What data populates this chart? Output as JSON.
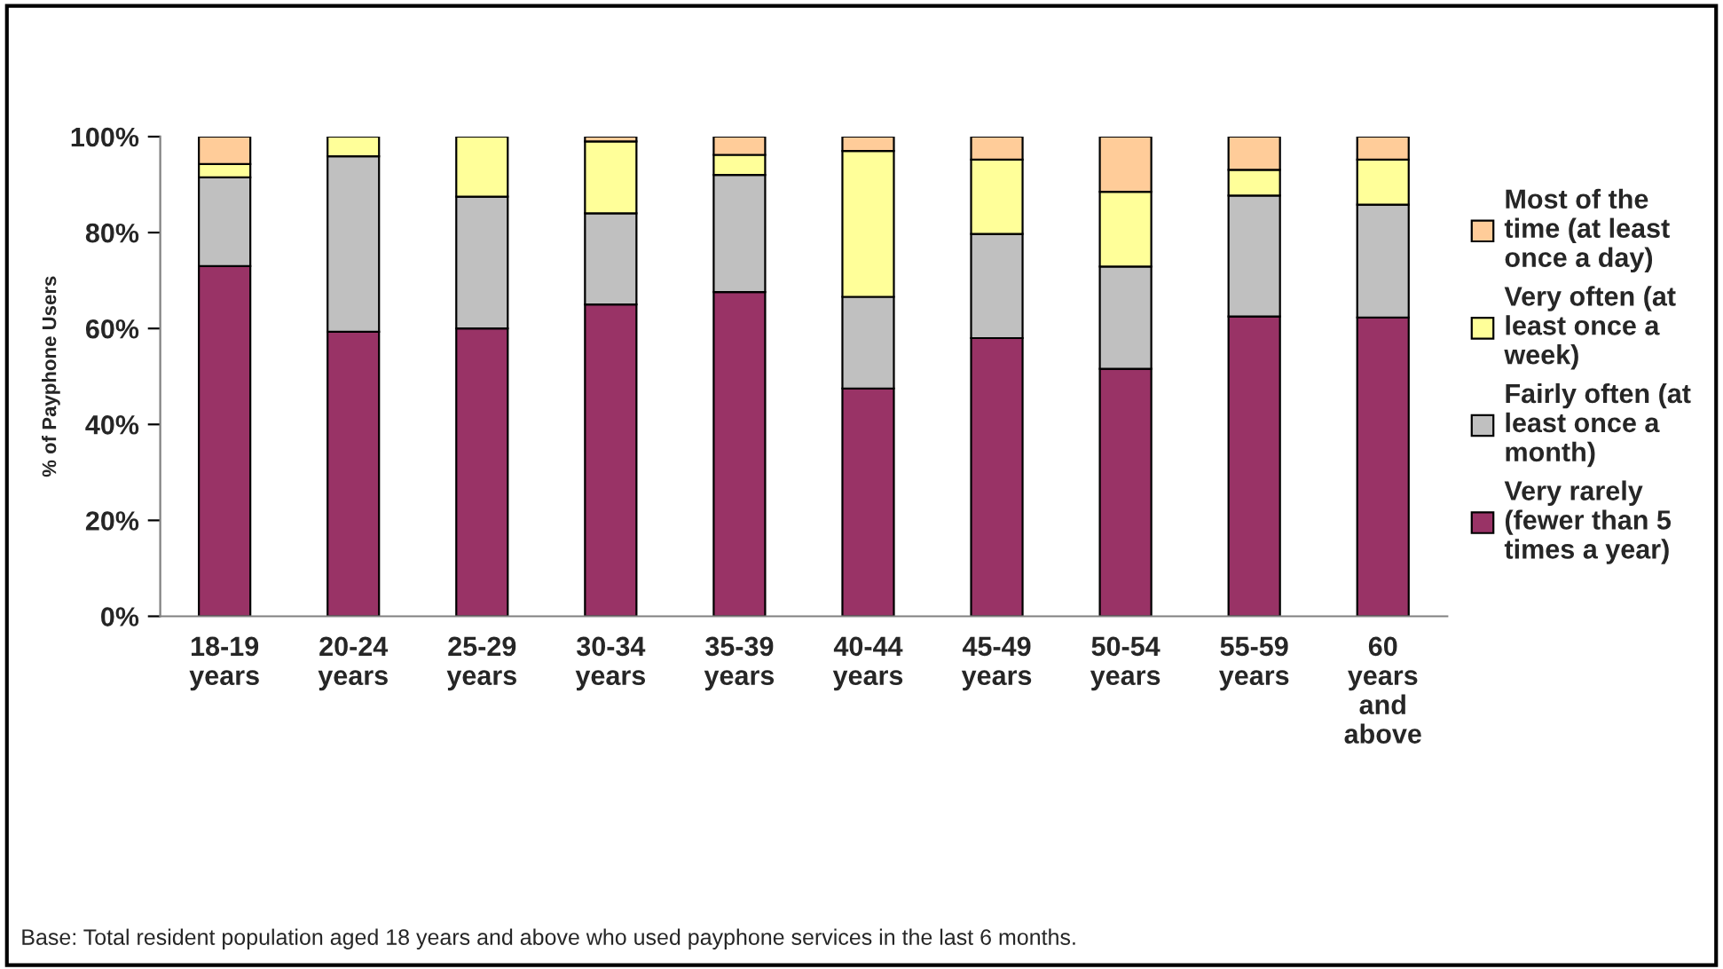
{
  "chart_data": {
    "type": "bar",
    "stacked": true,
    "ylabel": "% of Payphone Users",
    "categories": [
      "18-19\nyears",
      "20-24\nyears",
      "25-29\nyears",
      "30-34\nyears",
      "35-39\nyears",
      "40-44\nyears",
      "45-49\nyears",
      "50-54\nyears",
      "55-59\nyears",
      "60\nyears\nand\nabove"
    ],
    "series": [
      {
        "name": "Very rarely\n(fewer than 5\ntimes a year)",
        "color": "#993366",
        "values": [
          73,
          59.3,
          60,
          65,
          67.6,
          47.5,
          58,
          51.6,
          62.5,
          62.3
        ]
      },
      {
        "name": "Fairly often (at\nleast once a\nmonth)",
        "color": "#c0c0c0",
        "values": [
          18.5,
          36.6,
          27.5,
          19,
          24.4,
          19.1,
          21.7,
          21.3,
          25.2,
          23.5
        ]
      },
      {
        "name": "Very often (at\nleast once a\nweek)",
        "color": "#ffff99",
        "values": [
          2.8,
          4.1,
          12.5,
          15,
          4.2,
          30.4,
          15.5,
          15.6,
          5.4,
          9.4
        ]
      },
      {
        "name": "Most of the\ntime (at least\nonce a day)",
        "color": "#ffcc99",
        "values": [
          5.7,
          null,
          null,
          1,
          3.8,
          3,
          4.8,
          11.5,
          6.9,
          4.8
        ]
      }
    ],
    "ylim": [
      0,
      100
    ],
    "yticks": [
      {
        "value": 0,
        "label": "0%"
      },
      {
        "value": 20,
        "label": "20%"
      },
      {
        "value": 40,
        "label": "40%"
      },
      {
        "value": 60,
        "label": "60%"
      },
      {
        "value": 80,
        "label": "80%"
      },
      {
        "value": 100,
        "label": "100%"
      }
    ],
    "grid": false,
    "legend": "right",
    "annotations": [
      "Base: Total resident population aged 18 years and above who used payphone services in the last 6 months."
    ]
  }
}
